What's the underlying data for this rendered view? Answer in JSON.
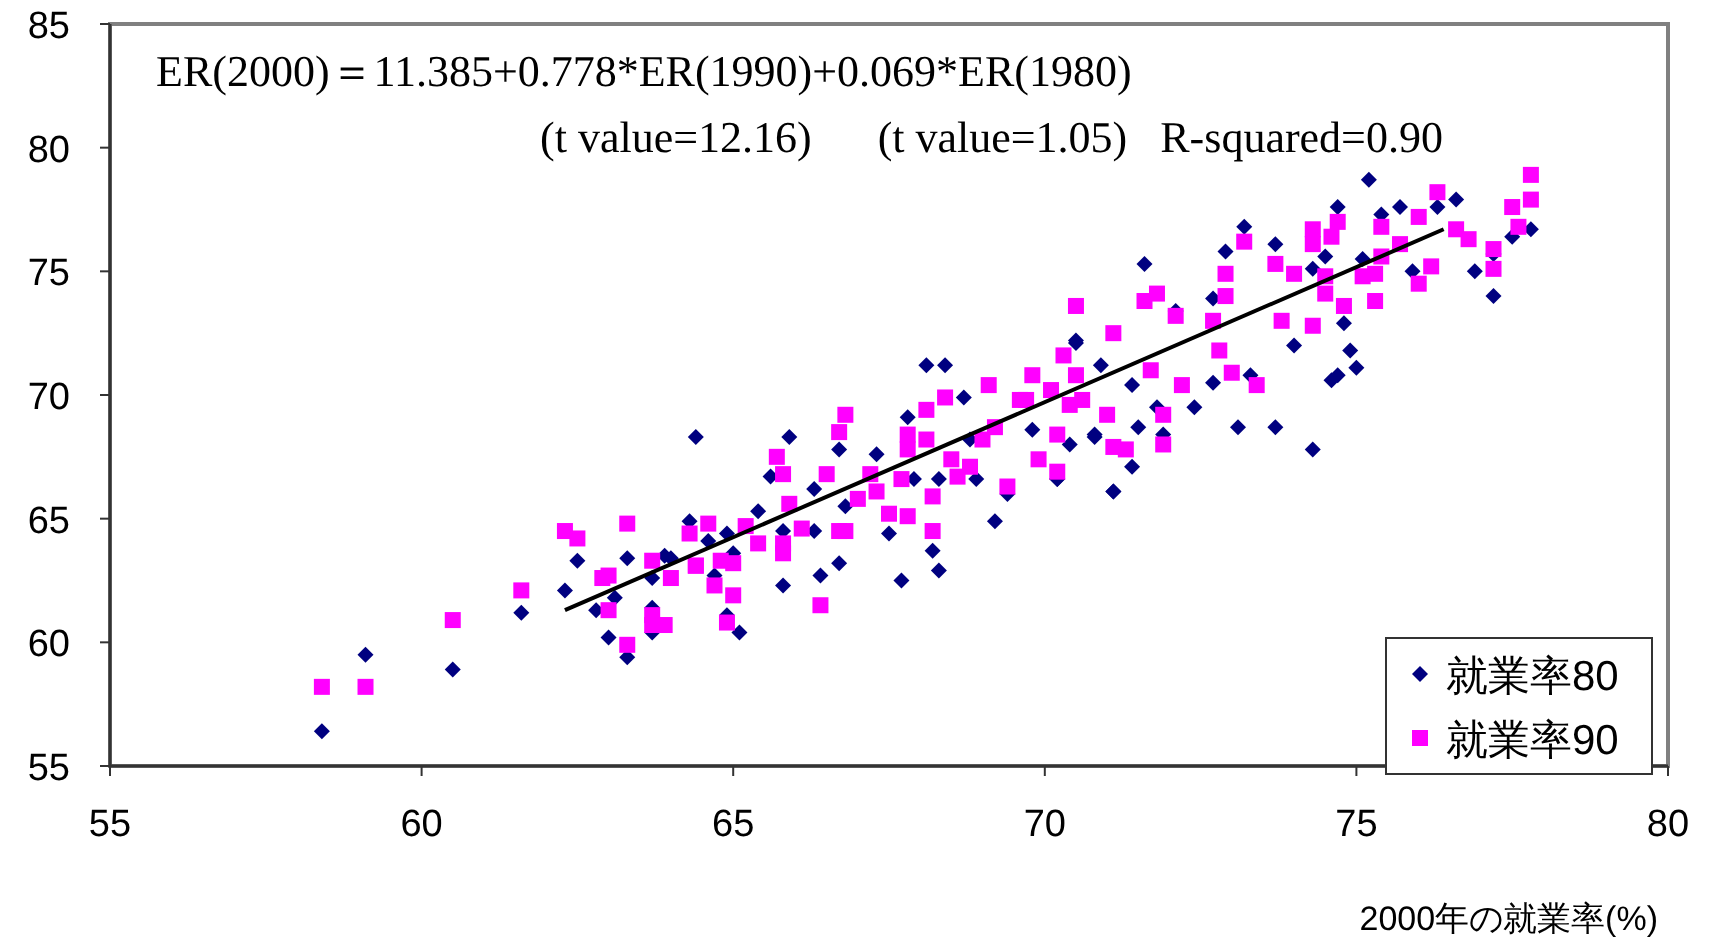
{
  "chart_data": {
    "type": "scatter",
    "xlabel": "2000年の就業率(%)",
    "annotations": [
      "ER(2000)＝11.385+0.778*ER(1990)+0.069*ER(1980)",
      "(t value=12.16)      (t value=1.05)   R-squared=0.90"
    ],
    "xlim": [
      55,
      80
    ],
    "xticks": [
      55,
      60,
      65,
      70,
      75,
      80
    ],
    "ylim": [
      55,
      85
    ],
    "yticks": [
      55,
      60,
      65,
      70,
      75,
      80,
      85
    ],
    "grid": false,
    "legend": "bottom right",
    "series": [
      {
        "name": "就業率80",
        "color": "#000080",
        "marker": "diamond",
        "x": [
          58.4,
          59.1,
          60.5,
          61.6,
          62.3,
          62.5,
          62.8,
          63.0,
          63.1,
          63.3,
          63.3,
          63.7,
          63.7,
          63.7,
          63.9,
          64.0,
          64.3,
          64.4,
          64.6,
          64.9,
          65.0,
          64.7,
          64.9,
          65.1,
          65.4,
          65.8,
          65.8,
          65.6,
          65.9,
          66.7,
          66.4,
          66.7,
          66.8,
          66.3,
          66.3,
          67.3,
          67.5,
          67.7,
          67.8,
          68.1,
          68.4,
          68.2,
          68.3,
          68.3,
          67.9,
          68.7,
          69.2,
          68.9,
          69.4,
          70.2,
          70.5,
          70.4,
          70.8,
          71.1,
          69.8,
          68.8,
          75.2,
          74.7,
          75.7,
          76.6,
          76.3,
          75.4,
          73.2,
          72.9,
          71.6,
          73.7,
          74.5,
          75.1,
          74.3,
          76.9,
          77.5,
          77.8,
          77.2,
          77.2,
          75.9,
          74.8,
          74.0,
          74.7,
          74.6,
          75.0,
          74.9,
          74.3,
          73.7,
          73.1,
          72.4,
          71.4,
          71.1,
          71.5,
          72.7,
          71.8,
          70.9,
          70.5,
          72.1,
          72.7,
          73.3,
          70.2,
          71.9,
          70.8,
          71.4
        ],
        "values": [
          56.4,
          59.5,
          58.9,
          61.2,
          62.1,
          63.3,
          61.3,
          60.2,
          61.8,
          59.4,
          63.4,
          60.4,
          62.6,
          61.4,
          63.5,
          63.4,
          64.9,
          68.3,
          64.1,
          64.4,
          63.6,
          62.7,
          61.1,
          60.4,
          65.3,
          62.3,
          64.5,
          66.7,
          68.3,
          67.8,
          62.7,
          63.2,
          65.5,
          64.5,
          66.2,
          67.6,
          64.4,
          62.5,
          69.1,
          71.2,
          71.2,
          63.7,
          62.9,
          66.6,
          66.6,
          69.9,
          64.9,
          66.6,
          66.0,
          66.6,
          72.1,
          68.0,
          68.3,
          66.1,
          68.6,
          68.2,
          78.7,
          77.6,
          77.6,
          77.9,
          77.6,
          77.3,
          76.8,
          75.8,
          75.3,
          76.1,
          75.6,
          75.5,
          75.1,
          75.0,
          76.4,
          76.7,
          75.7,
          74.0,
          75.0,
          72.9,
          72.0,
          70.8,
          70.6,
          71.1,
          71.8,
          67.8,
          68.7,
          68.7,
          69.5,
          67.1,
          66.1,
          68.7,
          70.5,
          69.5,
          71.2,
          72.2,
          73.4,
          73.9,
          70.8,
          66.6,
          68.4,
          68.4,
          70.4
        ]
      },
      {
        "name": "就業率90",
        "color": "#ff00ff",
        "marker": "square",
        "x": [
          58.4,
          59.1,
          60.5,
          61.6,
          62.3,
          62.5,
          63.3,
          62.9,
          63.0,
          63.0,
          63.7,
          63.7,
          63.7,
          63.9,
          63.3,
          64.0,
          64.3,
          64.4,
          64.6,
          64.4,
          64.7,
          65.0,
          64.9,
          64.8,
          65.0,
          65.2,
          65.4,
          65.7,
          65.8,
          65.9,
          65.8,
          65.8,
          66.1,
          66.4,
          66.5,
          66.7,
          66.8,
          66.7,
          66.8,
          67.0,
          67.2,
          67.3,
          67.5,
          67.7,
          67.8,
          67.8,
          67.8,
          68.1,
          68.1,
          68.2,
          68.2,
          68.4,
          68.5,
          68.6,
          68.8,
          69.1,
          69.0,
          69.2,
          69.4,
          69.7,
          69.8,
          69.9,
          70.1,
          70.3,
          70.4,
          70.5,
          70.2,
          70.2,
          71.0,
          71.1,
          77.8,
          77.8,
          77.5,
          77.6,
          76.3,
          76.0,
          75.4,
          76.6,
          76.8,
          77.2,
          77.2,
          76.2,
          76.0,
          75.7,
          75.4,
          74.7,
          74.6,
          74.3,
          74.3,
          73.2,
          73.7,
          74.0,
          74.5,
          75.1,
          75.3,
          75.3,
          74.8,
          74.5,
          73.8,
          74.3,
          72.9,
          72.9,
          72.7,
          72.8,
          73.0,
          73.4,
          72.2,
          71.9,
          71.9,
          71.3,
          71.7,
          72.1,
          71.8,
          71.6,
          70.5,
          71.1,
          70.6,
          69.6
        ],
        "values": [
          58.2,
          58.2,
          60.9,
          62.1,
          64.5,
          64.2,
          64.8,
          62.6,
          62.7,
          61.3,
          63.3,
          61.1,
          60.7,
          60.7,
          59.9,
          62.6,
          64.4,
          63.1,
          64.8,
          63.1,
          62.3,
          61.9,
          60.8,
          63.3,
          63.2,
          64.7,
          64.0,
          67.5,
          66.8,
          65.6,
          64.0,
          63.6,
          64.6,
          61.5,
          66.8,
          68.5,
          69.2,
          64.5,
          64.5,
          65.8,
          66.8,
          66.1,
          65.2,
          66.6,
          65.1,
          68.4,
          67.8,
          68.2,
          69.4,
          65.9,
          64.5,
          69.9,
          67.4,
          66.7,
          67.1,
          70.4,
          68.2,
          68.7,
          66.3,
          69.8,
          70.8,
          67.4,
          70.2,
          71.6,
          69.6,
          70.8,
          68.4,
          66.9,
          69.2,
          67.9,
          78.9,
          77.9,
          77.6,
          76.8,
          78.2,
          77.2,
          76.8,
          76.7,
          76.3,
          75.9,
          75.1,
          75.2,
          74.5,
          76.1,
          75.6,
          77.0,
          76.4,
          76.7,
          76.1,
          76.2,
          75.3,
          74.9,
          74.8,
          74.8,
          74.9,
          73.8,
          73.6,
          74.1,
          73.0,
          72.8,
          74.9,
          74.0,
          73.0,
          71.8,
          70.9,
          70.4,
          70.4,
          69.2,
          68.0,
          67.8,
          71.0,
          73.2,
          74.1,
          73.8,
          73.6,
          72.5,
          69.8,
          69.8
        ]
      },
      {
        "type": "line",
        "color": "#000000",
        "x": [
          62.3,
          76.4
        ],
        "values": [
          61.3,
          76.7
        ]
      }
    ]
  }
}
